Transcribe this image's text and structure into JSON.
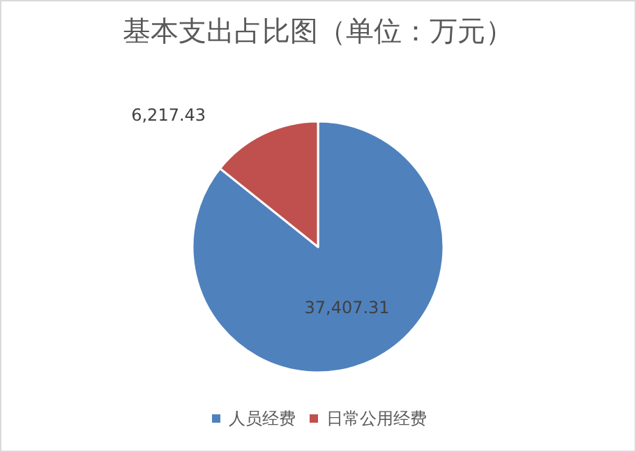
{
  "chart_data": {
    "type": "pie",
    "title": "基本支出占比图（单位：万元）",
    "categories": [
      "人员经费",
      "日常公用经费"
    ],
    "values": [
      37407.31,
      6217.43
    ],
    "colors": [
      "#4f81bd",
      "#c0504d"
    ],
    "value_labels": [
      "37,407.31",
      "6,217.43"
    ],
    "legend": "bottom"
  }
}
